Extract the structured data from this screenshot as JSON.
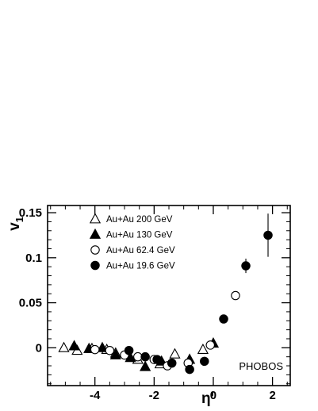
{
  "chart_data": {
    "type": "scatter",
    "title": "",
    "xlabel": "η'",
    "ylabel": "v",
    "ylabel_subscript": "1",
    "xlim": [
      -5.6,
      2.6
    ],
    "ylim": [
      -0.042,
      0.158
    ],
    "x_ticks": [
      -4,
      -2,
      0,
      2
    ],
    "x_tick_labels": [
      "-4",
      "-2",
      "0",
      "2"
    ],
    "y_ticks": [
      0,
      0.05,
      0.1,
      0.15
    ],
    "y_tick_labels": [
      "0",
      "0.05",
      "0.1",
      "0.15"
    ],
    "grid": false,
    "legend_position": "top-left",
    "annotation": "PHOBOS",
    "series": [
      {
        "name": "Au+Au 200 GeV",
        "marker": "triangle-open",
        "points": [
          [
            -5.05,
            0.0
          ],
          [
            -4.6,
            -0.003
          ],
          [
            -4.1,
            -0.001
          ],
          [
            -3.6,
            -0.002
          ],
          [
            -3.3,
            -0.006
          ],
          [
            -2.55,
            -0.013
          ],
          [
            -1.8,
            -0.018
          ],
          [
            -1.3,
            -0.007
          ],
          [
            -0.35,
            -0.002
          ]
        ]
      },
      {
        "name": "Au+Au 130 GeV",
        "marker": "triangle-filled",
        "points": [
          [
            -4.7,
            0.002
          ],
          [
            -4.2,
            -0.001
          ],
          [
            -3.75,
            0.0
          ],
          [
            -3.3,
            -0.008
          ],
          [
            -2.8,
            -0.011
          ],
          [
            -2.3,
            -0.021
          ],
          [
            -1.75,
            -0.015
          ],
          [
            -0.8,
            -0.013
          ],
          [
            0.0,
            0.005
          ]
        ]
      },
      {
        "name": "Au+Au 62.4 GeV",
        "marker": "circle-open",
        "points": [
          [
            -4.0,
            -0.002
          ],
          [
            -3.5,
            -0.003
          ],
          [
            -3.0,
            -0.008
          ],
          [
            -2.55,
            -0.01
          ],
          [
            -2.0,
            -0.013
          ],
          [
            -1.55,
            -0.02
          ],
          [
            -0.85,
            -0.017
          ],
          [
            -0.1,
            0.003
          ],
          [
            0.75,
            0.058
          ]
        ]
      },
      {
        "name": "Au+Au 19.6 GeV",
        "marker": "circle-filled",
        "points": [
          [
            -2.85,
            -0.003
          ],
          [
            -2.3,
            -0.01
          ],
          [
            -1.9,
            -0.013
          ],
          [
            -1.4,
            -0.017
          ],
          [
            -0.8,
            -0.024
          ],
          [
            -0.3,
            -0.015
          ],
          [
            0.35,
            0.032
          ],
          [
            1.1,
            0.091
          ],
          [
            1.85,
            0.125
          ]
        ],
        "errors": [
          0.0,
          0.0,
          0.0,
          0.0,
          0.0,
          0.0,
          0.004,
          0.008,
          0.024
        ]
      }
    ]
  }
}
